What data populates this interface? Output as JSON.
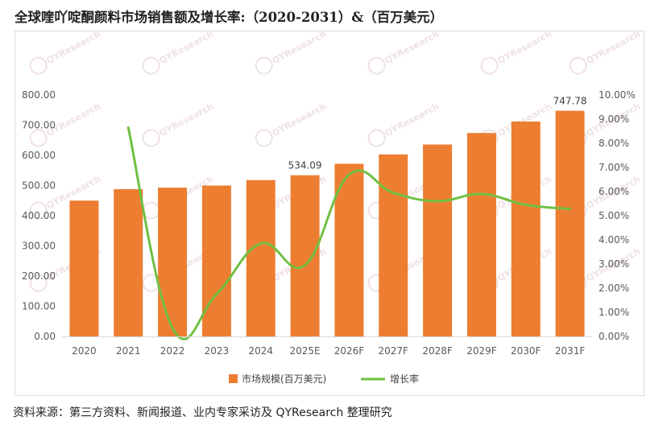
{
  "title": "全球喹吖啶酮颜料市场销售额及增长率:（2020-2031）&（百万美元）",
  "source": "资料来源：第三方资料、新闻报道、业内专家采访及 QYResearch 整理研究",
  "watermark": "QYResearch",
  "colors": {
    "bar": "#ed7d31",
    "line": "#70c043",
    "grid": "#d9d9d9",
    "axis": "#595959"
  },
  "chart_data": {
    "type": "bar",
    "categories": [
      "2020",
      "2021",
      "2022",
      "2023",
      "2024",
      "2025E",
      "2026F",
      "2027F",
      "2028F",
      "2029F",
      "2030F",
      "2031F"
    ],
    "series": [
      {
        "name": "市场规模(百万美元)",
        "type": "bar",
        "axis": "left",
        "values": [
          450,
          488,
          493,
          500,
          518,
          534.09,
          572,
          603,
          636,
          674,
          712,
          747.78
        ]
      },
      {
        "name": "增长率",
        "type": "line",
        "axis": "right",
        "values": [
          null,
          0.0865,
          0.0035,
          0.0175,
          0.0385,
          0.0295,
          0.067,
          0.0595,
          0.056,
          0.059,
          0.0545,
          0.0528
        ]
      }
    ],
    "data_labels": [
      {
        "category": "2025E",
        "text": "534.09"
      },
      {
        "category": "2031F",
        "text": "747.78"
      }
    ],
    "y_left": {
      "min": 0,
      "max": 800,
      "step": 100,
      "ticks": [
        "0.00",
        "100.00",
        "200.00",
        "300.00",
        "400.00",
        "500.00",
        "600.00",
        "700.00",
        "800.00"
      ]
    },
    "y_right": {
      "min": 0,
      "max": 0.1,
      "step": 0.01,
      "ticks": [
        "0.00%",
        "1.00%",
        "2.00%",
        "3.00%",
        "4.00%",
        "5.00%",
        "6.00%",
        "7.00%",
        "8.00%",
        "9.00%",
        "10.00%"
      ]
    },
    "grid": false,
    "legend": "bottom"
  }
}
